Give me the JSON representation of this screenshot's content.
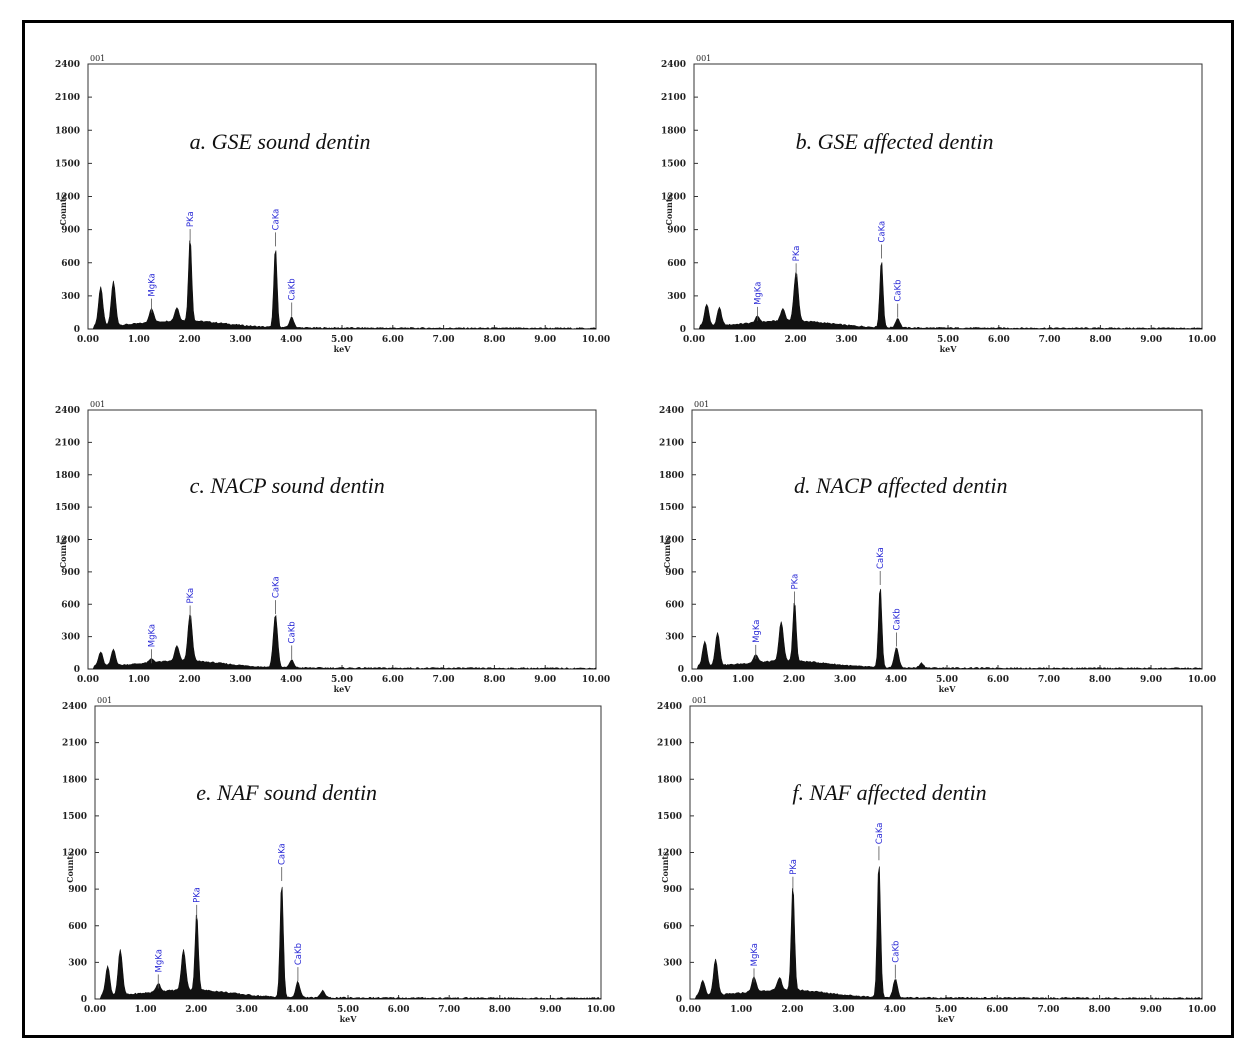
{
  "chart_data": [
    {
      "type": "area",
      "panel_label": "a.",
      "title": "GSE sound dentin",
      "corner_label": "001",
      "xlabel": "keV",
      "ylabel": "Counts",
      "xlim": [
        0,
        10
      ],
      "ylim": [
        0,
        2400
      ],
      "x_ticks": [
        "0.00",
        "1.00",
        "2.00",
        "3.00",
        "4.00",
        "5.00",
        "6.00",
        "7.00",
        "8.00",
        "9.00",
        "10.00"
      ],
      "y_ticks": [
        "2400",
        "2100",
        "1800",
        "1500",
        "1200",
        "900",
        "600",
        "300",
        "0"
      ],
      "peaks": [
        {
          "x": 0.25,
          "y": 350
        },
        {
          "x": 0.5,
          "y": 400
        },
        {
          "x": 1.25,
          "y": 130
        },
        {
          "x": 1.75,
          "y": 120
        },
        {
          "x": 2.01,
          "y": 760
        },
        {
          "x": 3.69,
          "y": 730
        },
        {
          "x": 4.01,
          "y": 95
        }
      ],
      "peak_labels": [
        {
          "x": 1.25,
          "y": 130,
          "label": "MgKa"
        },
        {
          "x": 2.01,
          "y": 760,
          "label": "PKa"
        },
        {
          "x": 3.69,
          "y": 730,
          "label": "CaKa"
        },
        {
          "x": 4.01,
          "y": 95,
          "label": "CaKb"
        }
      ]
    },
    {
      "type": "area",
      "panel_label": "b.",
      "title": "GSE affected dentin",
      "corner_label": "001",
      "xlabel": "keV",
      "ylabel": "Counts",
      "xlim": [
        0,
        10
      ],
      "ylim": [
        0,
        2400
      ],
      "x_ticks": [
        "0.00",
        "1.00",
        "2.00",
        "3.00",
        "4.00",
        "5.00",
        "6.00",
        "7.00",
        "8.00",
        "9.00",
        "10.00"
      ],
      "y_ticks": [
        "2400",
        "2100",
        "1800",
        "1500",
        "1200",
        "900",
        "600",
        "300",
        "0"
      ],
      "peaks": [
        {
          "x": 0.25,
          "y": 200
        },
        {
          "x": 0.5,
          "y": 160
        },
        {
          "x": 1.25,
          "y": 55
        },
        {
          "x": 1.75,
          "y": 110
        },
        {
          "x": 2.01,
          "y": 450
        },
        {
          "x": 3.69,
          "y": 620
        },
        {
          "x": 4.01,
          "y": 85
        }
      ],
      "peak_labels": [
        {
          "x": 1.25,
          "y": 55,
          "label": "MgKa"
        },
        {
          "x": 2.01,
          "y": 450,
          "label": "PKa"
        },
        {
          "x": 3.69,
          "y": 620,
          "label": "CaKa"
        },
        {
          "x": 4.01,
          "y": 85,
          "label": "CaKb"
        }
      ]
    },
    {
      "type": "area",
      "panel_label": "c.",
      "title": "NACP sound dentin",
      "corner_label": "001",
      "xlabel": "keV",
      "ylabel": "Counts",
      "xlim": [
        0,
        10
      ],
      "ylim": [
        0,
        2400
      ],
      "x_ticks": [
        "0.00",
        "1.00",
        "2.00",
        "3.00",
        "4.00",
        "5.00",
        "6.00",
        "7.00",
        "8.00",
        "9.00",
        "10.00"
      ],
      "y_ticks": [
        "2400",
        "2100",
        "1800",
        "1500",
        "1200",
        "900",
        "600",
        "300",
        "0"
      ],
      "peaks": [
        {
          "x": 0.25,
          "y": 130
        },
        {
          "x": 0.5,
          "y": 150
        },
        {
          "x": 1.25,
          "y": 35
        },
        {
          "x": 1.75,
          "y": 140
        },
        {
          "x": 2.01,
          "y": 440
        },
        {
          "x": 3.69,
          "y": 490
        },
        {
          "x": 4.01,
          "y": 70
        }
      ],
      "peak_labels": [
        {
          "x": 1.25,
          "y": 35,
          "label": "MgKa"
        },
        {
          "x": 2.01,
          "y": 440,
          "label": "PKa"
        },
        {
          "x": 3.69,
          "y": 490,
          "label": "CaKa"
        },
        {
          "x": 4.01,
          "y": 70,
          "label": "CaKb"
        }
      ]
    },
    {
      "type": "area",
      "panel_label": "d.",
      "title": "NACP affected dentin",
      "corner_label": "001",
      "xlabel": "keV",
      "ylabel": "Counts",
      "xlim": [
        0,
        10
      ],
      "ylim": [
        0,
        2400
      ],
      "x_ticks": [
        "0.00",
        "1.00",
        "2.00",
        "3.00",
        "4.00",
        "5.00",
        "6.00",
        "7.00",
        "8.00",
        "9.00",
        "10.00"
      ],
      "y_ticks": [
        "2400",
        "2100",
        "1800",
        "1500",
        "1200",
        "900",
        "600",
        "300",
        "0"
      ],
      "peaks": [
        {
          "x": 0.25,
          "y": 230
        },
        {
          "x": 0.5,
          "y": 310
        },
        {
          "x": 1.25,
          "y": 75
        },
        {
          "x": 1.75,
          "y": 370
        },
        {
          "x": 2.01,
          "y": 570
        },
        {
          "x": 3.69,
          "y": 760
        },
        {
          "x": 4.01,
          "y": 190
        },
        {
          "x": 4.5,
          "y": 45
        }
      ],
      "peak_labels": [
        {
          "x": 1.25,
          "y": 75,
          "label": "MgKa"
        },
        {
          "x": 2.01,
          "y": 570,
          "label": "PKa"
        },
        {
          "x": 3.69,
          "y": 760,
          "label": "CaKa"
        },
        {
          "x": 4.01,
          "y": 190,
          "label": "CaKb"
        }
      ]
    },
    {
      "type": "area",
      "panel_label": "e.",
      "title": "NAF sound dentin",
      "corner_label": "001",
      "xlabel": "keV",
      "ylabel": "Counts",
      "xlim": [
        0,
        10
      ],
      "ylim": [
        0,
        2400
      ],
      "x_ticks": [
        "0.00",
        "1.00",
        "2.00",
        "3.00",
        "4.00",
        "5.00",
        "6.00",
        "7.00",
        "8.00",
        "9.00",
        "10.00"
      ],
      "y_ticks": [
        "2400",
        "2100",
        "1800",
        "1500",
        "1200",
        "900",
        "600",
        "300",
        "0"
      ],
      "peaks": [
        {
          "x": 0.25,
          "y": 240
        },
        {
          "x": 0.5,
          "y": 370
        },
        {
          "x": 1.25,
          "y": 70
        },
        {
          "x": 1.75,
          "y": 330
        },
        {
          "x": 2.01,
          "y": 640
        },
        {
          "x": 3.69,
          "y": 950
        },
        {
          "x": 4.01,
          "y": 130
        },
        {
          "x": 4.5,
          "y": 60
        }
      ],
      "peak_labels": [
        {
          "x": 1.25,
          "y": 70,
          "label": "MgKa"
        },
        {
          "x": 2.01,
          "y": 640,
          "label": "PKa"
        },
        {
          "x": 3.69,
          "y": 950,
          "label": "CaKa"
        },
        {
          "x": 4.01,
          "y": 130,
          "label": "CaKb"
        }
      ]
    },
    {
      "type": "area",
      "panel_label": "f.",
      "title": "NAF affected dentin",
      "corner_label": "001",
      "xlabel": "keV",
      "ylabel": "Counts",
      "xlim": [
        0,
        10
      ],
      "ylim": [
        0,
        2400
      ],
      "x_ticks": [
        "0.00",
        "1.00",
        "2.00",
        "3.00",
        "4.00",
        "5.00",
        "6.00",
        "7.00",
        "8.00",
        "9.00",
        "10.00"
      ],
      "y_ticks": [
        "2400",
        "2100",
        "1800",
        "1500",
        "1200",
        "900",
        "600",
        "300",
        "0"
      ],
      "peaks": [
        {
          "x": 0.25,
          "y": 120
        },
        {
          "x": 0.5,
          "y": 290
        },
        {
          "x": 1.25,
          "y": 120
        },
        {
          "x": 1.75,
          "y": 100
        },
        {
          "x": 2.01,
          "y": 870
        },
        {
          "x": 3.69,
          "y": 1120
        },
        {
          "x": 4.01,
          "y": 150
        }
      ],
      "peak_labels": [
        {
          "x": 1.25,
          "y": 120,
          "label": "MgKa"
        },
        {
          "x": 2.01,
          "y": 870,
          "label": "PKa"
        },
        {
          "x": 3.69,
          "y": 1120,
          "label": "CaKa"
        },
        {
          "x": 4.01,
          "y": 150,
          "label": "CaKb"
        }
      ]
    }
  ]
}
